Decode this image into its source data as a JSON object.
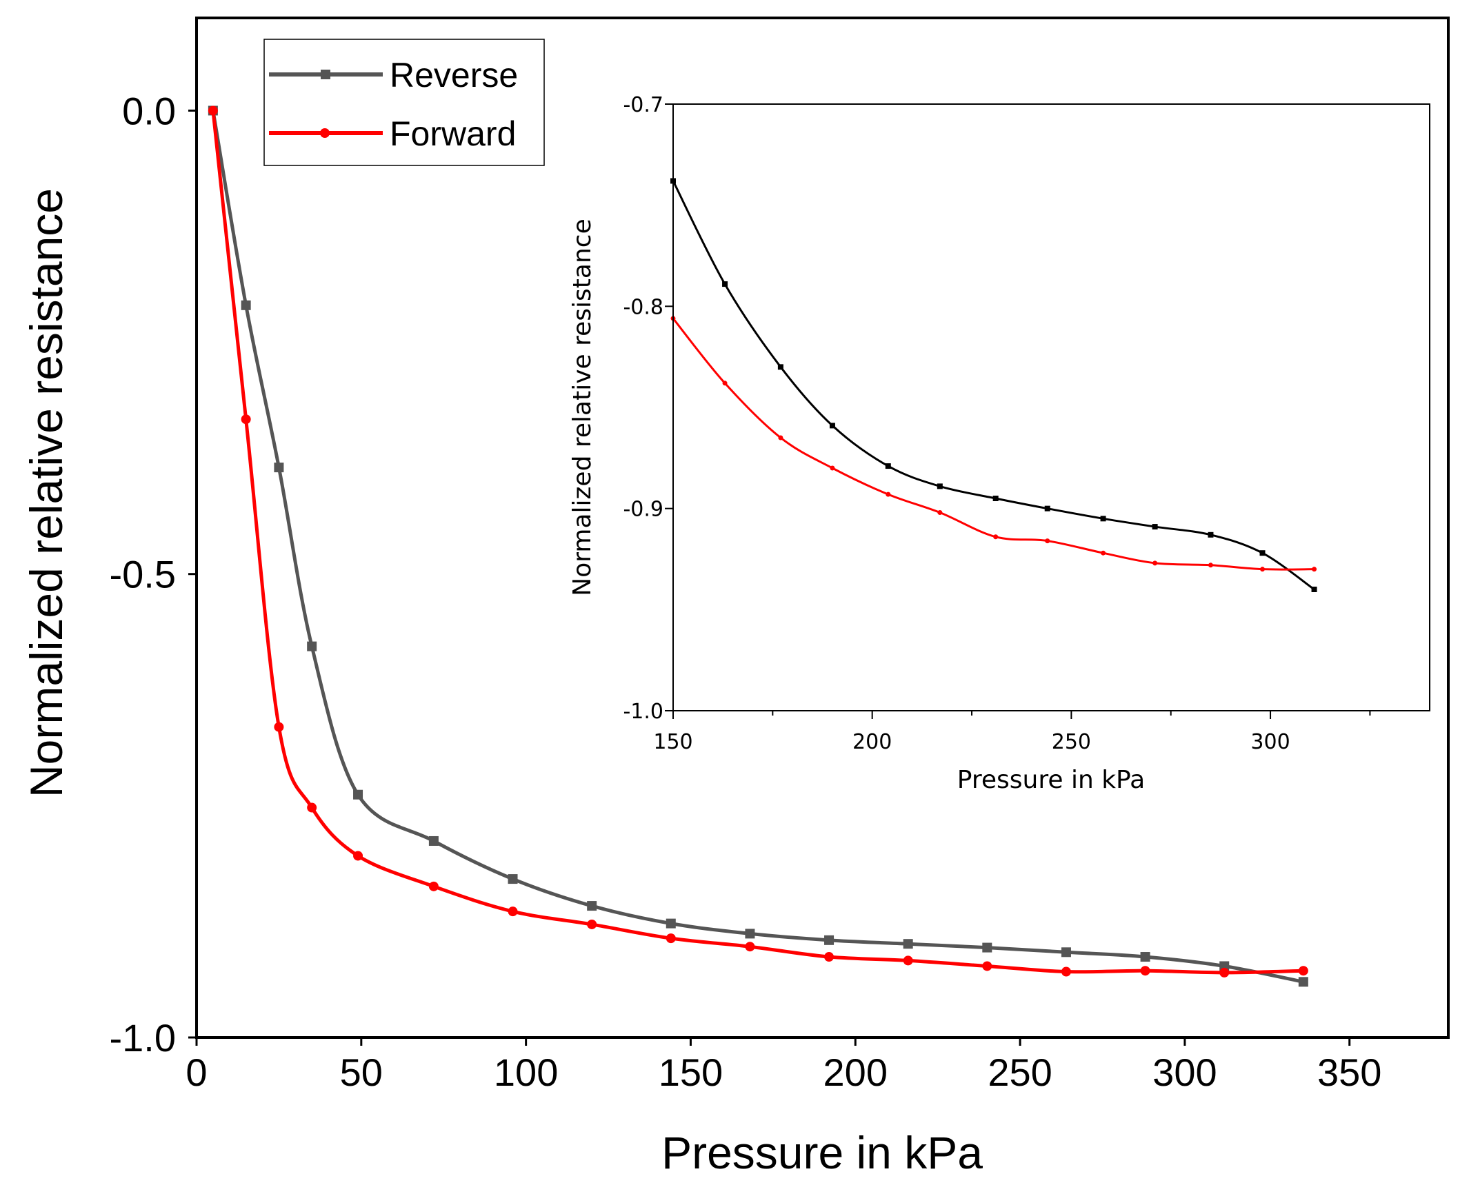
{
  "chart_data": [
    {
      "id": "main",
      "type": "line",
      "title": "",
      "xlabel": "Pressure in kPa",
      "ylabel": "Normalized relative resistance",
      "xlim": [
        0,
        380
      ],
      "ylim": [
        -1.0,
        0.1
      ],
      "xticks": [
        0,
        50,
        100,
        150,
        200,
        250,
        300,
        350
      ],
      "xtick_labels": [
        "0",
        "50",
        "100",
        "150",
        "200",
        "250",
        "300",
        "350"
      ],
      "yticks": [
        0.0,
        -0.5,
        -1.0
      ],
      "ytick_labels": [
        "0.0",
        "-0.5",
        "-1.0"
      ],
      "grid": false,
      "legend_position": "top-left",
      "series": [
        {
          "name": "Reverse",
          "color": "#555555",
          "marker": "square",
          "x": [
            5,
            15,
            25,
            35,
            49,
            72,
            96,
            120,
            144,
            168,
            192,
            216,
            240,
            264,
            288,
            312,
            336
          ],
          "y": [
            0.0,
            -0.21,
            -0.385,
            -0.578,
            -0.738,
            -0.788,
            -0.829,
            -0.858,
            -0.877,
            -0.888,
            -0.895,
            -0.899,
            -0.903,
            -0.908,
            -0.913,
            -0.923,
            -0.94
          ]
        },
        {
          "name": "Forward",
          "color": "#ff0000",
          "marker": "circle",
          "x": [
            5,
            15,
            25,
            35,
            49,
            72,
            96,
            120,
            144,
            168,
            192,
            216,
            240,
            264,
            288,
            312,
            336
          ],
          "y": [
            0.0,
            -0.333,
            -0.665,
            -0.752,
            -0.804,
            -0.837,
            -0.864,
            -0.878,
            -0.893,
            -0.902,
            -0.913,
            -0.917,
            -0.923,
            -0.929,
            -0.928,
            -0.93,
            -0.928
          ]
        }
      ]
    },
    {
      "id": "inset",
      "type": "line",
      "title": "",
      "xlabel": "Pressure in kPa",
      "ylabel": "Normalized relative resistance",
      "xlim": [
        150,
        340
      ],
      "ylim": [
        -1.0,
        -0.7
      ],
      "xticks": [
        150,
        200,
        250,
        300
      ],
      "xtick_labels": [
        "150",
        "200",
        "250",
        "300"
      ],
      "minor_xticks": [
        175,
        225,
        275,
        325
      ],
      "yticks": [
        -0.7,
        -0.8,
        -0.9,
        -1.0
      ],
      "ytick_labels": [
        "-0.7",
        "-0.8",
        "-0.9",
        "-1.0"
      ],
      "grid": false,
      "series": [
        {
          "name": "Reverse",
          "color": "#000000",
          "marker": "square",
          "x": [
            150,
            163,
            177,
            190,
            204,
            217,
            231,
            244,
            258,
            271,
            285,
            298,
            311
          ],
          "y": [
            -0.738,
            -0.789,
            -0.83,
            -0.859,
            -0.879,
            -0.889,
            -0.895,
            -0.9,
            -0.905,
            -0.909,
            -0.913,
            -0.922,
            -0.94
          ]
        },
        {
          "name": "Forward",
          "color": "#ff0000",
          "marker": "circle",
          "x": [
            150,
            163,
            177,
            190,
            204,
            217,
            231,
            244,
            258,
            271,
            285,
            298,
            311
          ],
          "y": [
            -0.806,
            -0.838,
            -0.865,
            -0.88,
            -0.893,
            -0.902,
            -0.914,
            -0.916,
            -0.922,
            -0.927,
            -0.928,
            -0.93,
            -0.93
          ]
        }
      ]
    }
  ]
}
